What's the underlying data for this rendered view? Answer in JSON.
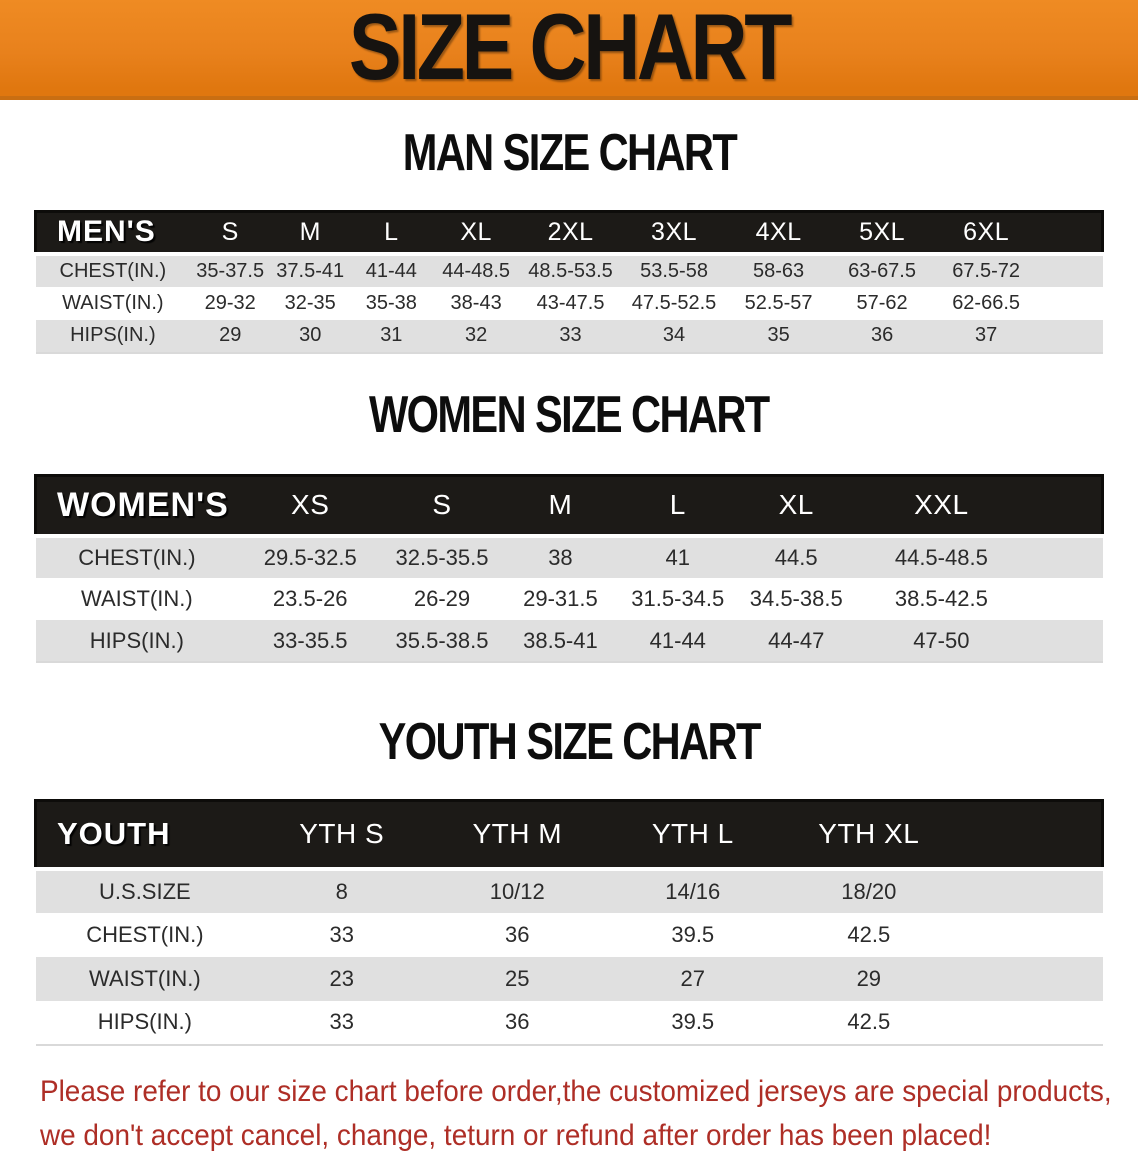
{
  "banner": {
    "title": "SIZE CHART"
  },
  "sections": [
    {
      "id": "men",
      "heading": "MAN SIZE CHART",
      "table": {
        "header": [
          "MEN'S",
          "S",
          "M",
          "L",
          "XL",
          "2XL",
          "3XL",
          "4XL",
          "5XL",
          "6XL"
        ],
        "rows": [
          {
            "label": "CHEST(IN.)",
            "values": [
              "35-37.5",
              "37.5-41",
              "41-44",
              "44-48.5",
              "48.5-53.5",
              "53.5-58",
              "58-63",
              "63-67.5",
              "67.5-72"
            ]
          },
          {
            "label": "WAIST(IN.)",
            "values": [
              "29-32",
              "32-35",
              "35-38",
              "38-43",
              "43-47.5",
              "47.5-52.5",
              "52.5-57",
              "57-62",
              "62-66.5"
            ]
          },
          {
            "label": "HIPS(IN.)",
            "values": [
              "29",
              "30",
              "31",
              "32",
              "33",
              "34",
              "35",
              "36",
              "37"
            ]
          }
        ]
      }
    },
    {
      "id": "women",
      "heading": "WOMEN SIZE CHART",
      "table": {
        "header": [
          "WOMEN'S",
          "XS",
          "S",
          "M",
          "L",
          "XL",
          "XXL"
        ],
        "rows": [
          {
            "label": "CHEST(IN.)",
            "values": [
              "29.5-32.5",
              "32.5-35.5",
              "38",
              "41",
              "44.5",
              "44.5-48.5"
            ]
          },
          {
            "label": "WAIST(IN.)",
            "values": [
              "23.5-26",
              "26-29",
              "29-31.5",
              "31.5-34.5",
              "34.5-38.5",
              "38.5-42.5"
            ]
          },
          {
            "label": "HIPS(IN.)",
            "values": [
              "33-35.5",
              "35.5-38.5",
              "38.5-41",
              "41-44",
              "44-47",
              "47-50"
            ]
          }
        ]
      }
    },
    {
      "id": "youth",
      "heading": "YOUTH SIZE CHART",
      "table": {
        "header": [
          "YOUTH",
          "YTH S",
          "YTH M",
          "YTH L",
          "YTH XL"
        ],
        "rows": [
          {
            "label": "U.S.SIZE",
            "values": [
              "8",
              "10/12",
              "14/16",
              "18/20"
            ]
          },
          {
            "label": "CHEST(IN.)",
            "values": [
              "33",
              "36",
              "39.5",
              "42.5"
            ]
          },
          {
            "label": "WAIST(IN.)",
            "values": [
              "23",
              "25",
              "27",
              "29"
            ]
          },
          {
            "label": "HIPS(IN.)",
            "values": [
              "33",
              "36",
              "39.5",
              "42.5"
            ]
          }
        ]
      }
    }
  ],
  "disclaimer": {
    "line1": "Please refer to our size chart before order,the customized jerseys are special products,",
    "line2": "we don't accept cancel, change, teturn or refund after order has been placed!"
  },
  "colors": {
    "banner_bg": "#E8811C",
    "banner_text": "#161310",
    "header_bar_bg": "#1C1A17",
    "header_bar_text": "#FFFFFF",
    "row_stripe": "#E0E0E0",
    "body_text": "#2B2B2B",
    "disclaimer_text": "#AE2E26"
  }
}
